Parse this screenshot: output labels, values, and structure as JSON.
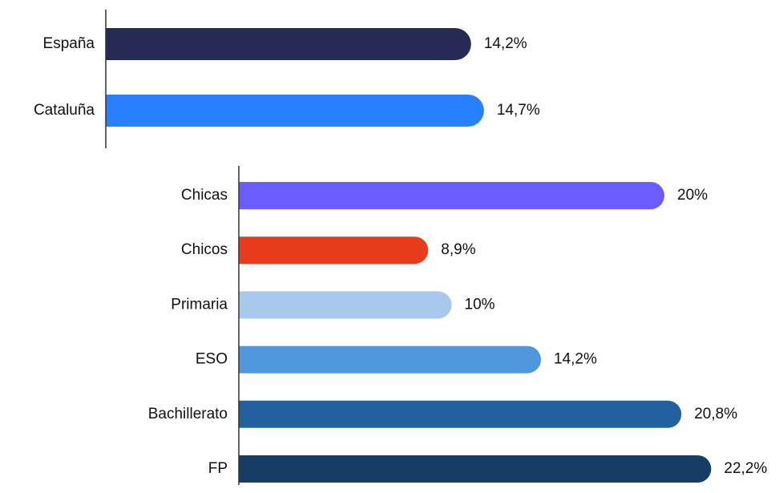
{
  "chart_data": [
    {
      "type": "bar",
      "orientation": "horizontal",
      "categories": [
        "España",
        "Cataluña"
      ],
      "values": [
        14.2,
        14.7
      ],
      "value_labels": [
        "14,2%",
        "14,7%"
      ],
      "colors": [
        "#262a55",
        "#2680ff"
      ]
    },
    {
      "type": "bar",
      "orientation": "horizontal",
      "categories": [
        "Chicas",
        "Chicos",
        "Primaria",
        "ESO",
        "Bachillerato",
        "FP"
      ],
      "values": [
        20,
        8.9,
        10,
        14.2,
        20.8,
        22.2
      ],
      "value_labels": [
        "20%",
        "8,9%",
        "10%",
        "14,2%",
        "20,8%",
        "22,2%"
      ],
      "colors": [
        "#6b5cff",
        "#e83c1c",
        "#a8c9ec",
        "#4f97dc",
        "#2360a0",
        "#173d64"
      ]
    }
  ]
}
